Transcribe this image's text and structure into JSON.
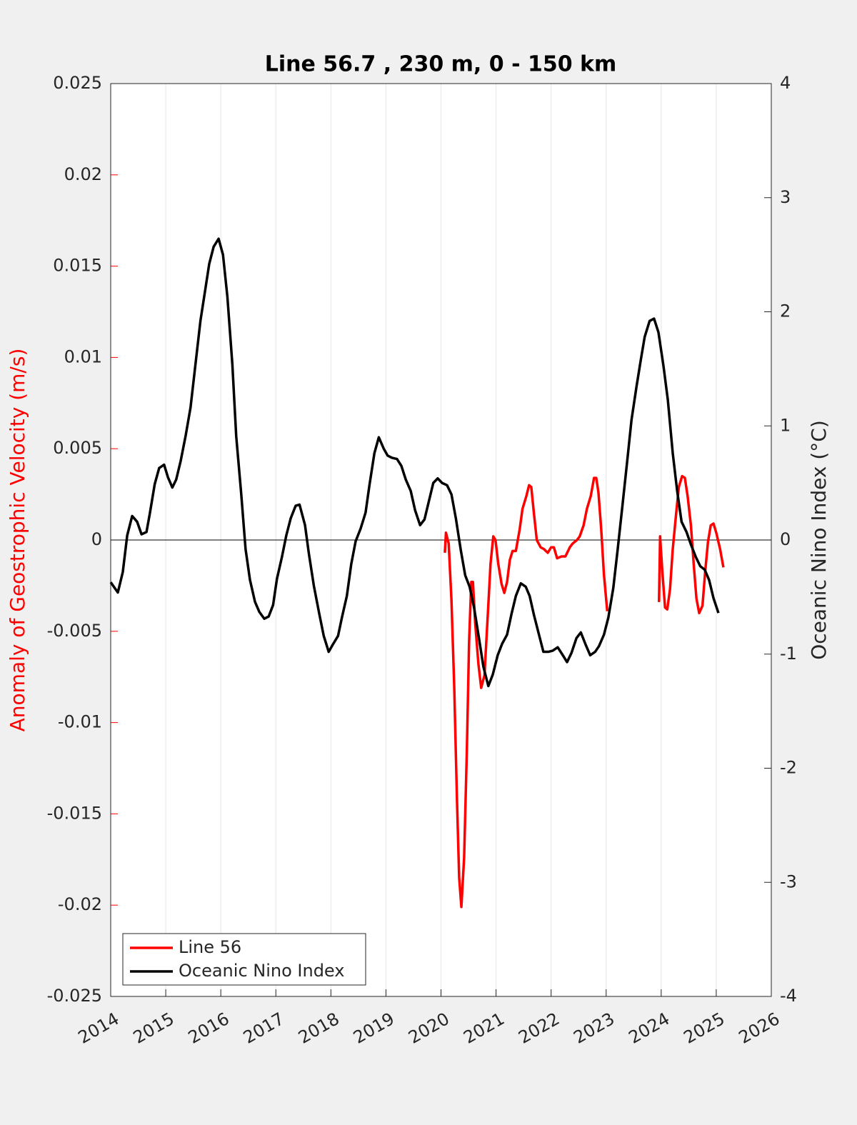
{
  "chart_data": {
    "type": "line",
    "title": "Line 56.7 , 230 m, 0 - 150 km",
    "y_label": "Anomaly of Geostrophic Velocity (m/s)",
    "y2_label": "Oceanic Nino Index (°C)",
    "xlim": [
      2014,
      2026
    ],
    "xticks": [
      2014,
      2015,
      2016,
      2017,
      2018,
      2019,
      2020,
      2021,
      2022,
      2023,
      2024,
      2025,
      2026
    ],
    "ylim": [
      -0.025,
      0.025
    ],
    "yticks": [
      -0.025,
      -0.02,
      -0.015,
      -0.01,
      -0.005,
      0,
      0.005,
      0.01,
      0.015,
      0.02,
      0.025
    ],
    "y2lim": [
      -4,
      4
    ],
    "y2ticks": [
      -4,
      -3,
      -2,
      -1,
      0,
      1,
      2,
      3,
      4
    ],
    "y_color": "#ff0000",
    "grid": "x",
    "legend": "lower left",
    "series": [
      {
        "name": "Line 56",
        "color": "#ff0000",
        "axis": "y",
        "x": [
          2020.07,
          2020.09,
          2020.14,
          2020.19,
          2020.24,
          2020.29,
          2020.33,
          2020.37,
          2020.42,
          2020.47,
          2020.51,
          2020.55,
          2020.58,
          2020.62,
          2020.68,
          2020.73,
          2020.79,
          2020.85,
          2020.9,
          2020.95,
          2020.99,
          2021.04,
          2021.1,
          2021.15,
          2021.2,
          2021.25,
          2021.3,
          2021.36,
          2021.43,
          2021.48,
          2021.55,
          2021.6,
          2021.64,
          2021.69,
          2021.74,
          2021.81,
          2021.87,
          2021.94,
          2022.0,
          2022.05,
          2022.11,
          2022.19,
          2022.26,
          2022.34,
          2022.39,
          2022.47,
          2022.52,
          2022.59,
          2022.65,
          2022.72,
          2022.78,
          2022.82,
          2022.86,
          2022.91,
          2022.96,
          2023.02,
          2023.5,
          2023.96,
          2023.98,
          2024.02,
          2024.07,
          2024.11,
          2024.16,
          2024.21,
          2024.27,
          2024.32,
          2024.38,
          2024.43,
          2024.48,
          2024.54,
          2024.59,
          2024.64,
          2024.69,
          2024.75,
          2024.8,
          2024.85,
          2024.9,
          2024.95,
          2025.0,
          2025.07,
          2025.13
        ],
        "values": [
          -0.0007,
          0.0004,
          -0.0002,
          -0.0033,
          -0.008,
          -0.0142,
          -0.0185,
          -0.0201,
          -0.0174,
          -0.0115,
          -0.0056,
          -0.0023,
          -0.0023,
          -0.0045,
          -0.0068,
          -0.0081,
          -0.0074,
          -0.0041,
          -0.0013,
          0.0002,
          0.0,
          -0.0013,
          -0.0024,
          -0.0029,
          -0.0023,
          -0.0011,
          -0.0006,
          -0.0006,
          0.0006,
          0.0017,
          0.0024,
          0.003,
          0.0029,
          0.0014,
          0.0,
          -0.0004,
          -0.0005,
          -0.0007,
          -0.0004,
          -0.0004,
          -0.001,
          -0.0009,
          -0.0009,
          -0.0004,
          -0.0002,
          0.0,
          0.0002,
          0.0008,
          0.0017,
          0.0024,
          0.0034,
          0.0034,
          0.0026,
          0.0006,
          -0.0019,
          -0.0039,
          null,
          -0.0034,
          0.0002,
          -0.0017,
          -0.0037,
          -0.0038,
          -0.0027,
          -0.0005,
          0.0014,
          0.0029,
          0.0035,
          0.0034,
          0.0024,
          0.0008,
          -0.0013,
          -0.0032,
          -0.004,
          -0.0036,
          -0.0017,
          -0.0001,
          0.0008,
          0.0009,
          0.0004,
          -0.0005,
          -0.0015
        ]
      },
      {
        "name": "Oceanic Nino Index",
        "color": "#000000",
        "axis": "y2",
        "x": [
          2014.0,
          2014.13,
          2014.22,
          2014.3,
          2014.39,
          2014.48,
          2014.56,
          2014.65,
          2014.71,
          2014.8,
          2014.88,
          2014.97,
          2015.04,
          2015.12,
          2015.19,
          2015.27,
          2015.36,
          2015.45,
          2015.54,
          2015.63,
          2015.71,
          2015.79,
          2015.87,
          2015.96,
          2016.04,
          2016.12,
          2016.21,
          2016.28,
          2016.37,
          2016.45,
          2016.53,
          2016.62,
          2016.7,
          2016.79,
          2016.87,
          2016.95,
          2017.02,
          2017.11,
          2017.19,
          2017.27,
          2017.36,
          2017.43,
          2017.53,
          2017.6,
          2017.69,
          2017.79,
          2017.87,
          2017.96,
          2018.03,
          2018.13,
          2018.2,
          2018.29,
          2018.37,
          2018.45,
          2018.54,
          2018.63,
          2018.7,
          2018.79,
          2018.87,
          2018.96,
          2019.03,
          2019.11,
          2019.2,
          2019.28,
          2019.36,
          2019.45,
          2019.53,
          2019.62,
          2019.7,
          2019.77,
          2019.86,
          2019.94,
          2020.02,
          2020.11,
          2020.19,
          2020.27,
          2020.36,
          2020.44,
          2020.52,
          2020.6,
          2020.68,
          2020.77,
          2020.86,
          2020.94,
          2021.03,
          2021.11,
          2021.2,
          2021.28,
          2021.36,
          2021.45,
          2021.54,
          2021.61,
          2021.69,
          2021.78,
          2021.86,
          2021.95,
          2022.03,
          2022.12,
          2022.2,
          2022.29,
          2022.37,
          2022.46,
          2022.54,
          2022.63,
          2022.71,
          2022.8,
          2022.87,
          2022.96,
          2023.04,
          2023.13,
          2023.21,
          2023.3,
          2023.38,
          2023.46,
          2023.55,
          2023.63,
          2023.7,
          2023.79,
          2023.87,
          2023.95,
          2024.04,
          2024.12,
          2024.21,
          2024.29,
          2024.37,
          2024.46,
          2024.54,
          2024.63,
          2024.71,
          2024.79,
          2024.87,
          2024.95,
          2025.04
        ],
        "values": [
          -0.37,
          -0.46,
          -0.28,
          0.04,
          0.21,
          0.16,
          0.05,
          0.07,
          0.23,
          0.49,
          0.63,
          0.66,
          0.55,
          0.46,
          0.53,
          0.69,
          0.91,
          1.16,
          1.54,
          1.92,
          2.17,
          2.42,
          2.57,
          2.64,
          2.5,
          2.13,
          1.54,
          0.91,
          0.41,
          -0.08,
          -0.35,
          -0.54,
          -0.63,
          -0.69,
          -0.67,
          -0.57,
          -0.34,
          -0.15,
          0.04,
          0.19,
          0.3,
          0.31,
          0.13,
          -0.12,
          -0.4,
          -0.65,
          -0.84,
          -0.98,
          -0.92,
          -0.84,
          -0.68,
          -0.49,
          -0.21,
          -0.01,
          0.1,
          0.24,
          0.48,
          0.76,
          0.9,
          0.8,
          0.74,
          0.72,
          0.71,
          0.65,
          0.53,
          0.43,
          0.26,
          0.13,
          0.18,
          0.32,
          0.5,
          0.54,
          0.5,
          0.48,
          0.4,
          0.19,
          -0.09,
          -0.31,
          -0.41,
          -0.59,
          -0.83,
          -1.11,
          -1.28,
          -1.18,
          -1.01,
          -0.91,
          -0.83,
          -0.65,
          -0.49,
          -0.38,
          -0.41,
          -0.49,
          -0.66,
          -0.83,
          -0.98,
          -0.98,
          -0.97,
          -0.94,
          -1.0,
          -1.07,
          -0.99,
          -0.86,
          -0.81,
          -0.92,
          -1.01,
          -0.98,
          -0.93,
          -0.83,
          -0.68,
          -0.42,
          -0.08,
          0.32,
          0.68,
          1.05,
          1.34,
          1.58,
          1.78,
          1.92,
          1.94,
          1.82,
          1.53,
          1.23,
          0.76,
          0.43,
          0.16,
          0.07,
          -0.04,
          -0.15,
          -0.23,
          -0.26,
          -0.35,
          -0.51,
          -0.64
        ]
      }
    ]
  }
}
